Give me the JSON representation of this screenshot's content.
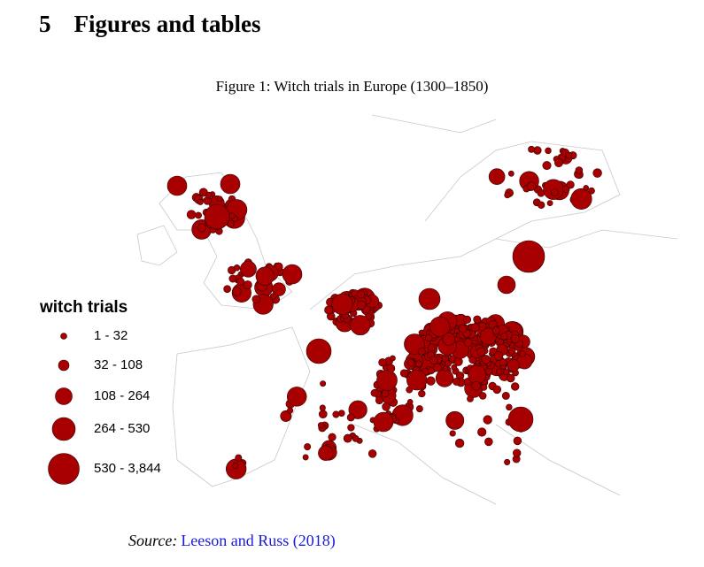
{
  "section": {
    "number": "5",
    "title": "Figures and tables"
  },
  "figure": {
    "caption": "Figure 1: Witch trials in Europe (1300–1850)",
    "legend": {
      "title": "witch trials",
      "items": [
        "1 - 32",
        "32 - 108",
        "108 - 264",
        "264 - 530",
        "530 - 3,844"
      ]
    },
    "source": {
      "label": "Source:",
      "text": "Leeson and Russ (2018)"
    }
  }
}
